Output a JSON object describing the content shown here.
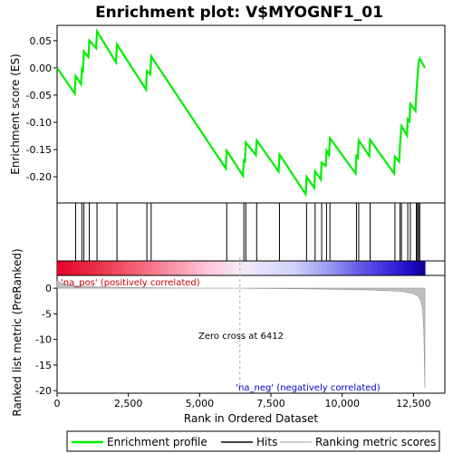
{
  "chart_data": {
    "type": "line",
    "title": "Enrichment plot: V$MYOGNF1_01",
    "top_panel": {
      "ylabel": "Enrichment score (ES)",
      "yticks": [
        0.05,
        0.0,
        -0.05,
        -0.1,
        -0.15,
        -0.2
      ],
      "ytick_labels": [
        "0.05",
        "0.00",
        "-0.05",
        "-0.10",
        "-0.15",
        "-0.20"
      ],
      "ylim": [
        -0.248,
        0.078
      ],
      "series_color": "#00ee00"
    },
    "bottom_panel": {
      "ylabel": "Ranked list metric (PreRanked)",
      "xlabel": "Rank in Ordered Dataset",
      "yticks": [
        0,
        -5,
        -10,
        -15,
        -20
      ],
      "ytick_labels": [
        "0",
        "-5",
        "-10",
        "-15",
        "-20"
      ],
      "ylim": [
        -20.5,
        2.5
      ],
      "xticks": [
        0,
        2500,
        5000,
        7500,
        10000,
        12500
      ],
      "xtick_labels": [
        "0",
        "2,500",
        "5,000",
        "7,500",
        "10,000",
        "12,500"
      ]
    },
    "xlim": [
      0,
      13600
    ],
    "n_genes": 12900,
    "hits": [
      650,
      870,
      940,
      1130,
      1400,
      2100,
      3150,
      3300,
      5950,
      6550,
      6620,
      7000,
      7800,
      8750,
      9050,
      9280,
      9450,
      9570,
      10500,
      10580,
      10980,
      11850,
      12030,
      12080,
      12300,
      12390,
      12600,
      12640,
      12680,
      12720
    ],
    "es_points": [
      [
        0,
        0.0
      ],
      [
        620,
        -0.047
      ],
      [
        650,
        -0.015
      ],
      [
        840,
        -0.03
      ],
      [
        870,
        -0.002
      ],
      [
        910,
        -0.005
      ],
      [
        940,
        0.03
      ],
      [
        1100,
        0.02
      ],
      [
        1130,
        0.05
      ],
      [
        1370,
        0.036
      ],
      [
        1400,
        0.067
      ],
      [
        2070,
        0.01
      ],
      [
        2100,
        0.043
      ],
      [
        3120,
        -0.04
      ],
      [
        3150,
        -0.006
      ],
      [
        3270,
        -0.012
      ],
      [
        3300,
        0.021
      ],
      [
        5920,
        -0.185
      ],
      [
        5950,
        -0.152
      ],
      [
        6520,
        -0.198
      ],
      [
        6550,
        -0.17
      ],
      [
        6590,
        -0.172
      ],
      [
        6620,
        -0.137
      ],
      [
        6970,
        -0.16
      ],
      [
        7000,
        -0.133
      ],
      [
        7770,
        -0.19
      ],
      [
        7800,
        -0.159
      ],
      [
        8720,
        -0.232
      ],
      [
        8750,
        -0.2
      ],
      [
        9020,
        -0.22
      ],
      [
        9050,
        -0.19
      ],
      [
        9250,
        -0.205
      ],
      [
        9280,
        -0.174
      ],
      [
        9420,
        -0.18
      ],
      [
        9450,
        -0.152
      ],
      [
        9540,
        -0.16
      ],
      [
        9570,
        -0.129
      ],
      [
        10470,
        -0.194
      ],
      [
        10500,
        -0.162
      ],
      [
        10550,
        -0.165
      ],
      [
        10580,
        -0.133
      ],
      [
        10950,
        -0.162
      ],
      [
        10980,
        -0.132
      ],
      [
        11820,
        -0.194
      ],
      [
        11850,
        -0.163
      ],
      [
        12000,
        -0.172
      ],
      [
        12030,
        -0.14
      ],
      [
        12080,
        -0.107
      ],
      [
        12270,
        -0.124
      ],
      [
        12300,
        -0.094
      ],
      [
        12360,
        -0.098
      ],
      [
        12390,
        -0.066
      ],
      [
        12570,
        -0.079
      ],
      [
        12600,
        -0.048
      ],
      [
        12640,
        -0.018
      ],
      [
        12680,
        0.01
      ],
      [
        12720,
        0.017
      ],
      [
        12900,
        0.0
      ]
    ],
    "metric_points": [
      [
        0,
        1.4
      ],
      [
        200,
        0.9
      ],
      [
        500,
        0.55
      ],
      [
        1000,
        0.35
      ],
      [
        2000,
        0.2
      ],
      [
        3000,
        0.12
      ],
      [
        4000,
        0.06
      ],
      [
        5000,
        0.03
      ],
      [
        6000,
        0.01
      ],
      [
        6412,
        0.0
      ],
      [
        7000,
        -0.03
      ],
      [
        8000,
        -0.08
      ],
      [
        9000,
        -0.14
      ],
      [
        10000,
        -0.22
      ],
      [
        11000,
        -0.35
      ],
      [
        11500,
        -0.45
      ],
      [
        12000,
        -0.6
      ],
      [
        12300,
        -0.8
      ],
      [
        12500,
        -1.05
      ],
      [
        12650,
        -1.5
      ],
      [
        12750,
        -2.3
      ],
      [
        12820,
        -4.0
      ],
      [
        12860,
        -8.0
      ],
      [
        12900,
        -19.5
      ]
    ],
    "zero_cross": 6412,
    "annotations": {
      "pos_label": "'na_pos' (positively correlated)",
      "neg_label": "'na_neg' (negatively correlated)",
      "zero_cross_label": "Zero cross at 6412"
    },
    "legend": {
      "placement": "bottom",
      "items": [
        {
          "label": "Enrichment profile",
          "color": "#00ee00"
        },
        {
          "label": "Hits",
          "color": "#000000"
        },
        {
          "label": "Ranking metric scores",
          "color": "#c0c0c0"
        }
      ]
    }
  }
}
